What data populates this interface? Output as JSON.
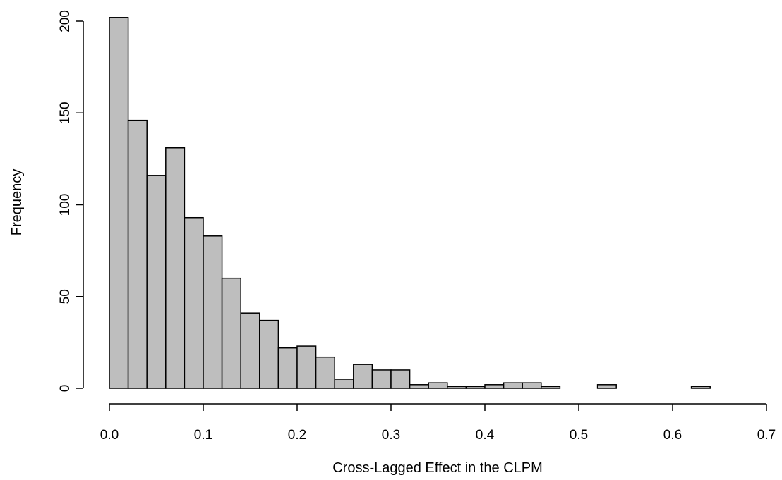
{
  "chart_data": {
    "type": "bar",
    "title": "",
    "xlabel": "Cross-Lagged Effect in the CLPM",
    "ylabel": "Frequency",
    "bin_width": 0.02,
    "bins": [
      {
        "start": 0.0,
        "end": 0.02,
        "count": 202
      },
      {
        "start": 0.02,
        "end": 0.04,
        "count": 146
      },
      {
        "start": 0.04,
        "end": 0.06,
        "count": 116
      },
      {
        "start": 0.06,
        "end": 0.08,
        "count": 131
      },
      {
        "start": 0.08,
        "end": 0.1,
        "count": 93
      },
      {
        "start": 0.1,
        "end": 0.12,
        "count": 83
      },
      {
        "start": 0.12,
        "end": 0.14,
        "count": 60
      },
      {
        "start": 0.14,
        "end": 0.16,
        "count": 41
      },
      {
        "start": 0.16,
        "end": 0.18,
        "count": 37
      },
      {
        "start": 0.18,
        "end": 0.2,
        "count": 22
      },
      {
        "start": 0.2,
        "end": 0.22,
        "count": 23
      },
      {
        "start": 0.22,
        "end": 0.24,
        "count": 17
      },
      {
        "start": 0.24,
        "end": 0.26,
        "count": 5
      },
      {
        "start": 0.26,
        "end": 0.28,
        "count": 13
      },
      {
        "start": 0.28,
        "end": 0.3,
        "count": 10
      },
      {
        "start": 0.3,
        "end": 0.32,
        "count": 10
      },
      {
        "start": 0.32,
        "end": 0.34,
        "count": 2
      },
      {
        "start": 0.34,
        "end": 0.36,
        "count": 3
      },
      {
        "start": 0.36,
        "end": 0.38,
        "count": 1
      },
      {
        "start": 0.38,
        "end": 0.4,
        "count": 1
      },
      {
        "start": 0.4,
        "end": 0.42,
        "count": 2
      },
      {
        "start": 0.42,
        "end": 0.44,
        "count": 3
      },
      {
        "start": 0.44,
        "end": 0.46,
        "count": 3
      },
      {
        "start": 0.46,
        "end": 0.48,
        "count": 1
      },
      {
        "start": 0.48,
        "end": 0.5,
        "count": 0
      },
      {
        "start": 0.5,
        "end": 0.52,
        "count": 0
      },
      {
        "start": 0.52,
        "end": 0.54,
        "count": 2
      },
      {
        "start": 0.54,
        "end": 0.56,
        "count": 0
      },
      {
        "start": 0.56,
        "end": 0.58,
        "count": 0
      },
      {
        "start": 0.58,
        "end": 0.6,
        "count": 0
      },
      {
        "start": 0.6,
        "end": 0.62,
        "count": 0
      },
      {
        "start": 0.62,
        "end": 0.64,
        "count": 1
      },
      {
        "start": 0.64,
        "end": 0.66,
        "count": 0
      },
      {
        "start": 0.66,
        "end": 0.68,
        "count": 0
      },
      {
        "start": 0.68,
        "end": 0.7,
        "count": 0
      }
    ],
    "xlim": [
      0,
      0.7
    ],
    "ylim": [
      0,
      200
    ],
    "x_ticks": [
      0.0,
      0.1,
      0.2,
      0.3,
      0.4,
      0.5,
      0.6,
      0.7
    ],
    "x_tick_labels": [
      "0.0",
      "0.1",
      "0.2",
      "0.3",
      "0.4",
      "0.5",
      "0.6",
      "0.7"
    ],
    "y_ticks": [
      0,
      50,
      100,
      150,
      200
    ],
    "y_tick_labels": [
      "0",
      "50",
      "100",
      "150",
      "200"
    ],
    "grid": false,
    "bar_color": "#bebebe",
    "edge_color": "#000000"
  }
}
